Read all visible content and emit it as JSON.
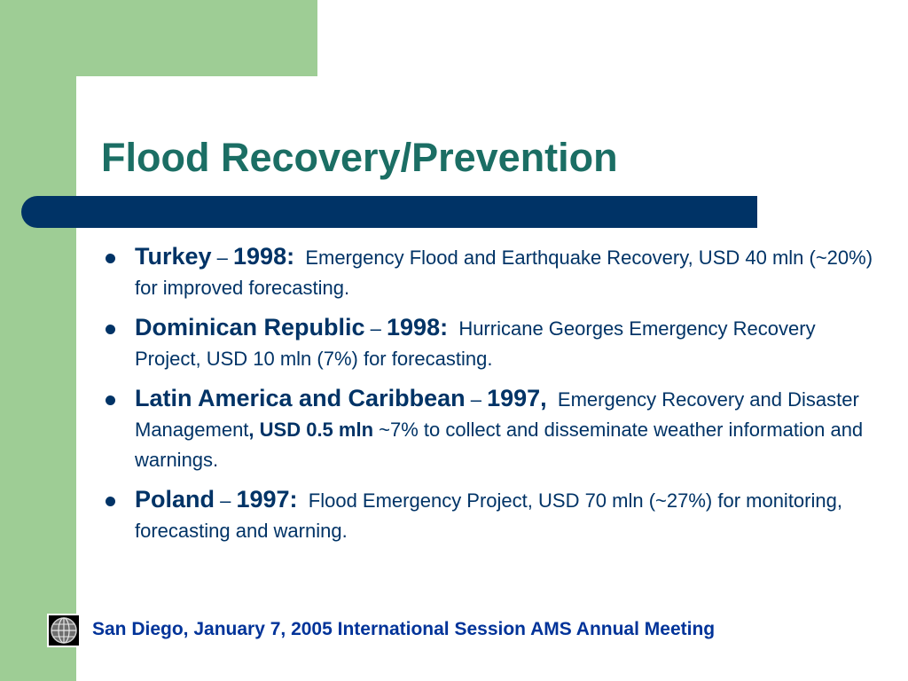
{
  "slide": {
    "title": "Flood Recovery/Prevention",
    "bullets": [
      {
        "name": "Turkey",
        "dash": " – ",
        "year": "1998:",
        "detail_a": "Emergency Flood and Earthquake Recovery, USD 40 mln (~20%) for improved forecasting.",
        "detail_bold": "",
        "detail_b": ""
      },
      {
        "name": "Dominican Republic",
        "dash": " – ",
        "year": "1998:",
        "detail_a": "Hurricane Georges Emergency Recovery Project, USD 10 mln (7%) for forecasting.",
        "detail_bold": "",
        "detail_b": ""
      },
      {
        "name": "Latin America and Caribbean",
        "dash": " – ",
        "year": "1997,",
        "detail_a": "Emergency Recovery and Disaster Management",
        "detail_bold": ", USD 0.5 mln",
        "detail_b": " ~7% to collect and disseminate weather information and warnings."
      },
      {
        "name": "Poland",
        "dash": " – ",
        "year": "1997:",
        "detail_a": "Flood Emergency Project, USD 70 mln (~27%) for monitoring, forecasting and warning.",
        "detail_bold": "",
        "detail_b": ""
      }
    ]
  },
  "footer": {
    "text": "San Diego, January 7, 2005  International Session AMS Annual Meeting",
    "logo_icon": "globe-icon"
  },
  "colors": {
    "green": "#9ecd95",
    "title": "#1b6e64",
    "navy": "#003366",
    "footer": "#003399"
  }
}
